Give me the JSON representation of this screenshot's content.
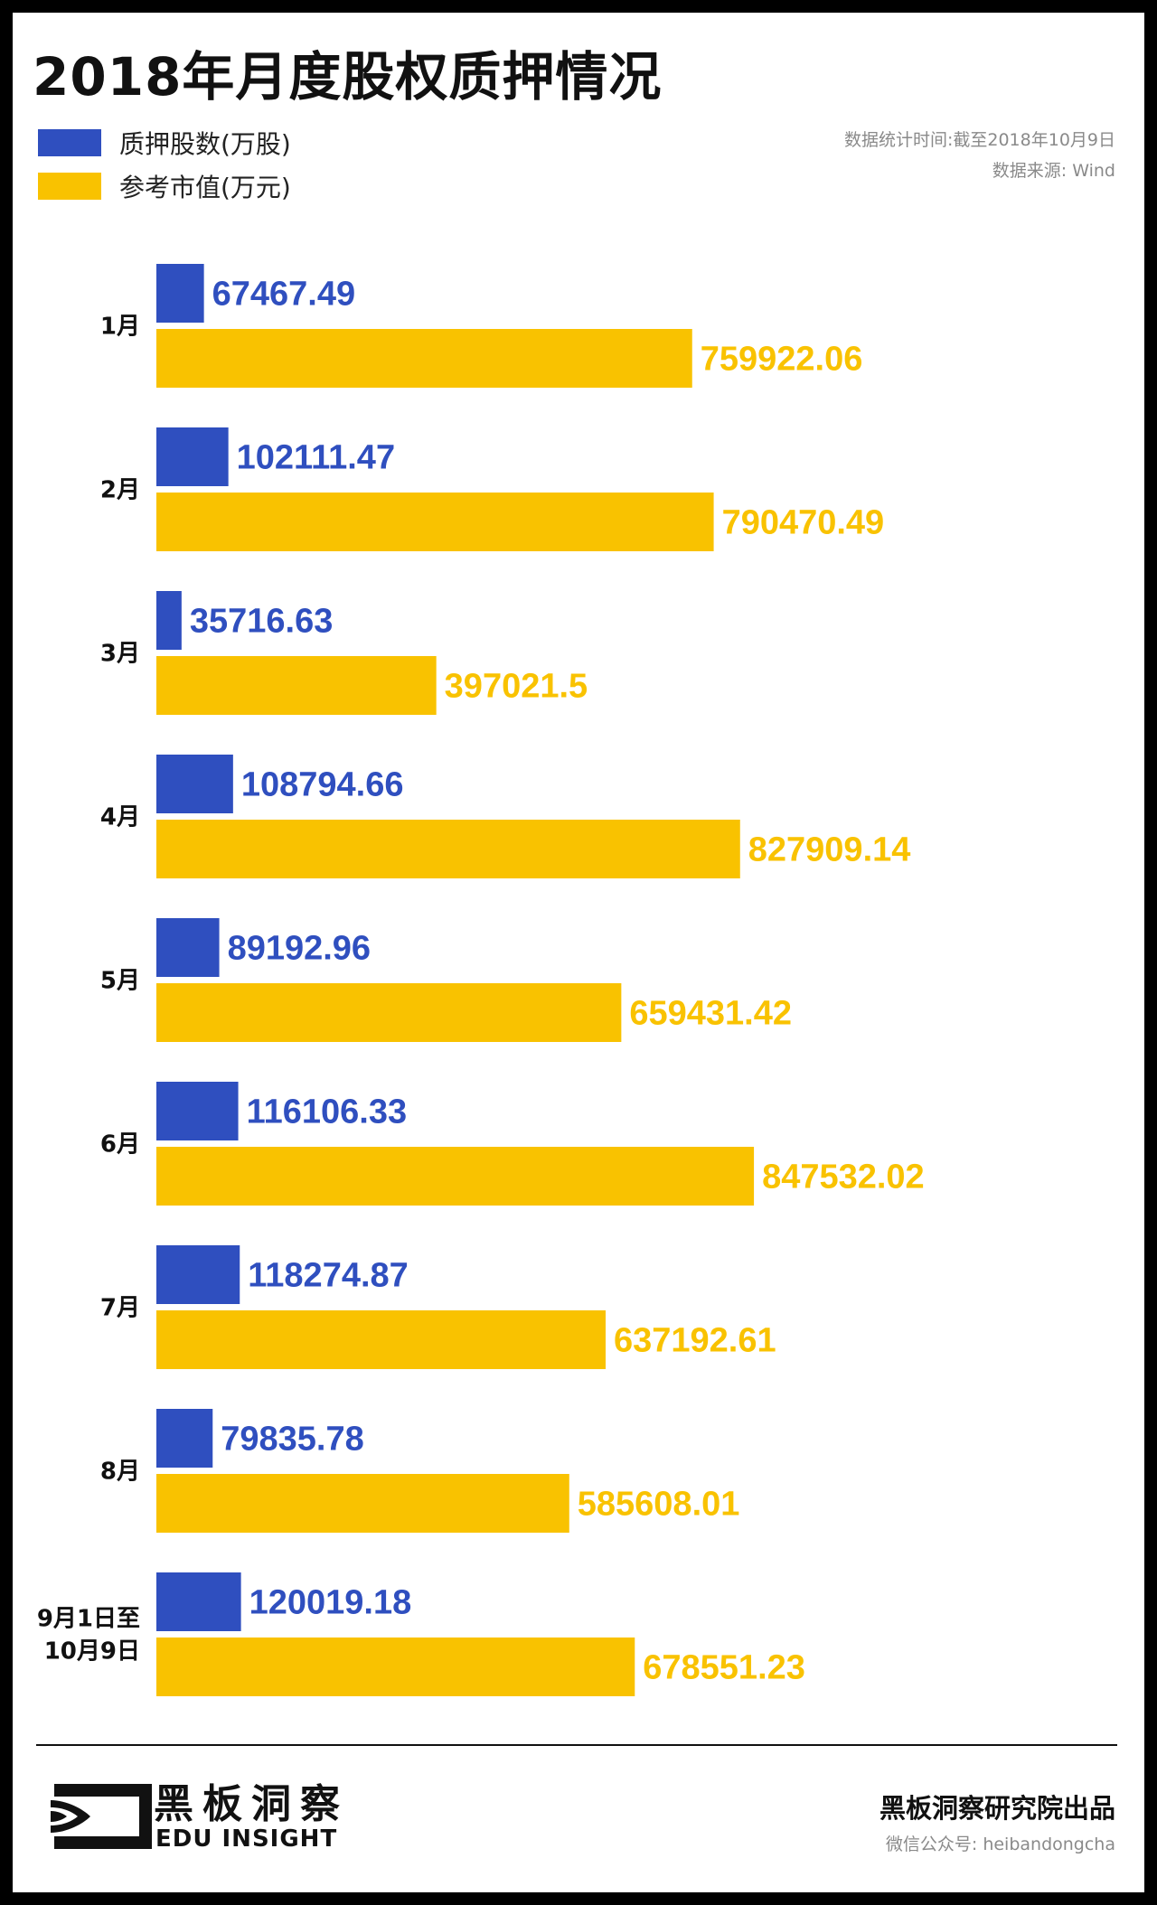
{
  "title": "2018年月度股权质押情况",
  "legend": {
    "items": [
      {
        "label": "质押股数(万股)",
        "color": "#2f4fbf"
      },
      {
        "label": "参考市值(万元)",
        "color": "#f9c200"
      }
    ]
  },
  "meta": {
    "stat_time": "数据统计时间:截至2018年10月9日",
    "source": "数据来源: Wind"
  },
  "chart_data": {
    "type": "bar",
    "orientation": "horizontal",
    "categories": [
      "1月",
      "2月",
      "3月",
      "4月",
      "5月",
      "6月",
      "7月",
      "8月",
      "9月1日至\n10月9日"
    ],
    "series": [
      {
        "name": "质押股数(万股)",
        "color": "#2f4fbf",
        "values": [
          67467.49,
          102111.47,
          35716.63,
          108794.66,
          89192.96,
          116106.33,
          118274.87,
          79835.78,
          120019.18
        ],
        "labels": [
          "67467.49",
          "102111.47",
          "35716.63",
          "108794.66",
          "89192.96",
          "116106.33",
          "118274.87",
          "79835.78",
          "120019.18"
        ]
      },
      {
        "name": "参考市值(万元)",
        "color": "#f9c200",
        "values": [
          759922.06,
          790470.49,
          397021.5,
          827909.14,
          659431.42,
          847532.02,
          637192.61,
          585608.01,
          678551.23
        ],
        "labels": [
          "759922.06",
          "790470.49",
          "397021.5",
          "827909.14",
          "659431.42",
          "847532.02",
          "637192.61",
          "585608.01",
          "678551.23"
        ]
      }
    ],
    "xlim": [
      0,
      1000000
    ],
    "grid": false,
    "legend_position": "top-left"
  },
  "footer": {
    "brand_name": "黑板洞察",
    "brand_en": "EDU INSIGHT",
    "producer": "黑板洞察研究院出品",
    "wechat": "微信公众号: heibandongcha"
  }
}
